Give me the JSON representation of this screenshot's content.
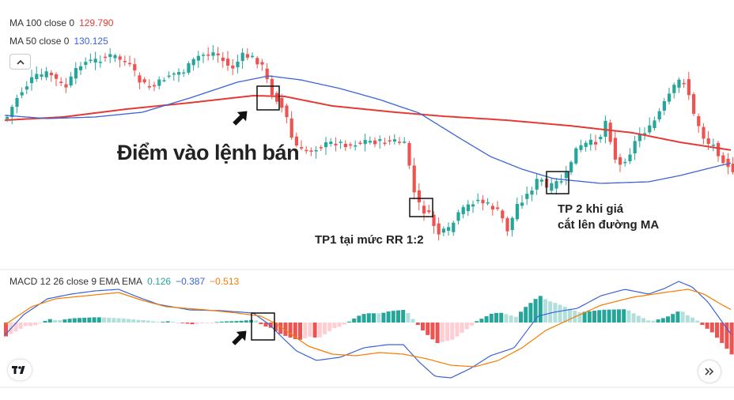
{
  "legend": {
    "ma100_label": "MA 100 close 0",
    "ma100_value": "129.790",
    "ma50_label": "MA 50 close 0",
    "ma50_value": "130.125",
    "macd_label": "MACD 12 26 close 9 EMA EMA",
    "macd_value1": "0.126",
    "macd_value2": "−0.387",
    "macd_value3": "−0.513"
  },
  "colors": {
    "ma100": "#e53935",
    "ma50": "#3a63d8",
    "up_candle": "#26a69a",
    "down_candle": "#ef5350",
    "macd_line": "#3a63d8",
    "signal_line": "#f57c00",
    "macd_value1_color": "#26a69a",
    "macd_value2_color": "#3a63d8",
    "macd_value3_color": "#f57c00"
  },
  "annotations": {
    "entry": "Điểm vào lệnh bán",
    "tp1": "TP1 tại mức RR 1:2",
    "tp2_line1": "TP 2 khi giá",
    "tp2_line2": "cắt lên đường MA"
  },
  "icons": {
    "collapse": "chevron-up-icon",
    "logo": "tradingview-logo",
    "nav": "double-chevron-right-icon"
  },
  "chart_data": [
    {
      "type": "candlestick",
      "title": "",
      "series": [
        {
          "name": "MA 100 close 0",
          "last_value": 129.79
        },
        {
          "name": "MA 50 close 0",
          "last_value": 130.125
        }
      ],
      "notes": "price candles with MA 100 (red) and MA 50 (blue) overlays; no visible price axis"
    },
    {
      "type": "histogram",
      "title": "MACD 12 26 close 9 EMA EMA",
      "series": [
        {
          "name": "histogram",
          "last_value": 0.126
        },
        {
          "name": "MACD",
          "last_value": -0.387
        },
        {
          "name": "signal",
          "last_value": -0.513
        }
      ]
    }
  ]
}
